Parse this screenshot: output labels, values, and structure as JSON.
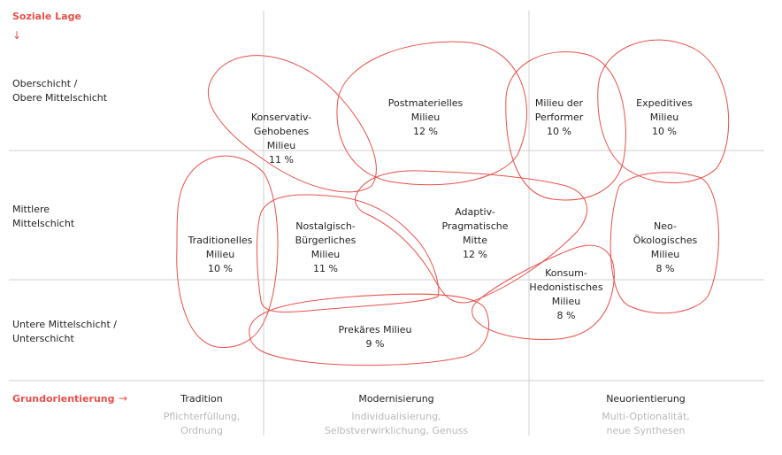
{
  "axes": {
    "y_title": "Soziale Lage",
    "y_arrow": "↓",
    "x_title": "Grundorientierung",
    "x_arrow": "→",
    "rows": [
      {
        "line1": "Oberschicht /",
        "line2": "Obere Mittelschicht"
      },
      {
        "line1": "Mittlere",
        "line2": "Mittelschicht"
      },
      {
        "line1": "Untere Mittelschicht /",
        "line2": "Unterschicht"
      }
    ],
    "columns": [
      {
        "title": "Tradition",
        "sub1": "Pflichterfüllung,",
        "sub2": "Ordnung"
      },
      {
        "title": "Modernisierung",
        "sub1": "Individualisierung,",
        "sub2": "Selbstverwirklichung, Genuss"
      },
      {
        "title": "Neuorientierung",
        "sub1": "Multi-Optionalität,",
        "sub2": "neue Synthesen"
      }
    ]
  },
  "milieus": [
    {
      "id": "konservativ",
      "lines": [
        "Konservativ-",
        "Gehobenes",
        "Milieu"
      ],
      "share": "11 %"
    },
    {
      "id": "postmateriell",
      "lines": [
        "Postmaterielles",
        "Milieu"
      ],
      "share": "12 %"
    },
    {
      "id": "performer",
      "lines": [
        "Milieu der",
        "Performer"
      ],
      "share": "10 %"
    },
    {
      "id": "expeditiv",
      "lines": [
        "Expeditives",
        "Milieu"
      ],
      "share": "10 %"
    },
    {
      "id": "traditionell",
      "lines": [
        "Traditionelles",
        "Milieu"
      ],
      "share": "10 %"
    },
    {
      "id": "nostalgisch",
      "lines": [
        "Nostalgisch-",
        "Bürgerliches",
        "Milieu"
      ],
      "share": "11 %"
    },
    {
      "id": "adaptiv",
      "lines": [
        "Adaptiv-",
        "Pragmatische",
        "Mitte"
      ],
      "share": "12 %"
    },
    {
      "id": "neooeko",
      "lines": [
        "Neo-",
        "Ökologisches",
        "Milieu"
      ],
      "share": "8 %"
    },
    {
      "id": "konsum",
      "lines": [
        "Konsum-",
        "Hedonistisches",
        "Milieu"
      ],
      "share": "8 %"
    },
    {
      "id": "prekaer",
      "lines": [
        "Prekäres Milieu"
      ],
      "share": "9 %"
    }
  ],
  "colors": {
    "accent": "#e8504a",
    "grid": "#cfcfcf",
    "text": "#222222",
    "muted": "#b8b8b8"
  }
}
